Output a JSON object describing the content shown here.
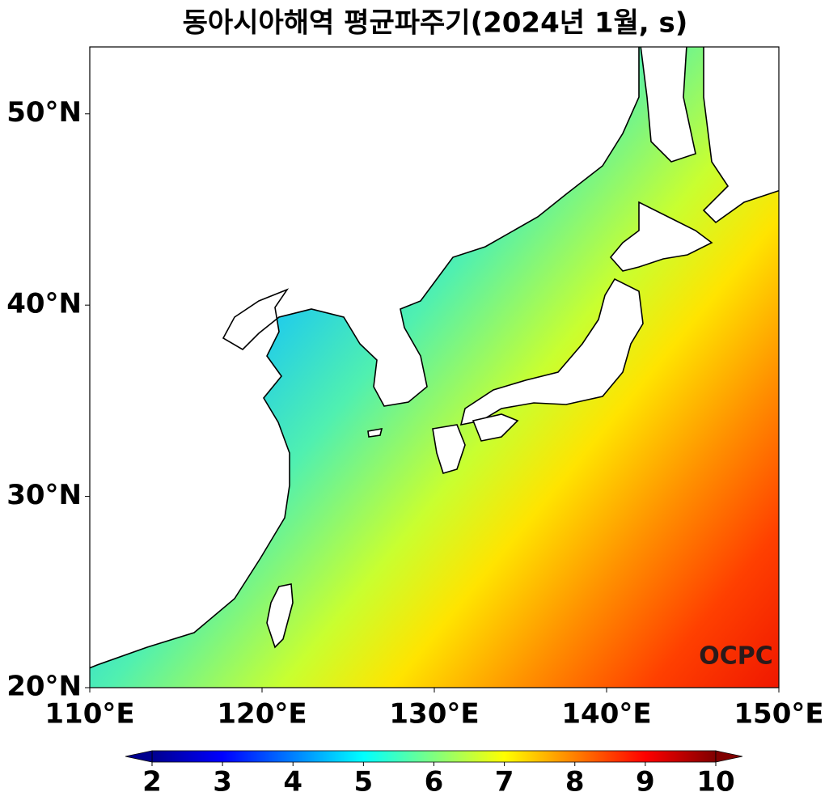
{
  "title": "동아시아해역 평균파주기(2024년 1월, s)",
  "map": {
    "lonlim": [
      110,
      150
    ],
    "latlim": [
      20,
      53.5
    ],
    "lon_ticks": [
      {
        "value": 110,
        "label": "110°E"
      },
      {
        "value": 120,
        "label": "120°E"
      },
      {
        "value": 130,
        "label": "130°E"
      },
      {
        "value": 140,
        "label": "140°E"
      },
      {
        "value": 150,
        "label": "150°E"
      }
    ],
    "lat_ticks": [
      {
        "value": 20,
        "label": "20°N"
      },
      {
        "value": 30,
        "label": "30°N"
      },
      {
        "value": 40,
        "label": "40°N"
      },
      {
        "value": 50,
        "label": "50°N"
      }
    ]
  },
  "colorbar": {
    "lim": [
      2,
      10
    ],
    "ticks": [
      2,
      3,
      4,
      5,
      6,
      7,
      8,
      9,
      10
    ],
    "extend": "both"
  },
  "logo": "OCPC"
}
